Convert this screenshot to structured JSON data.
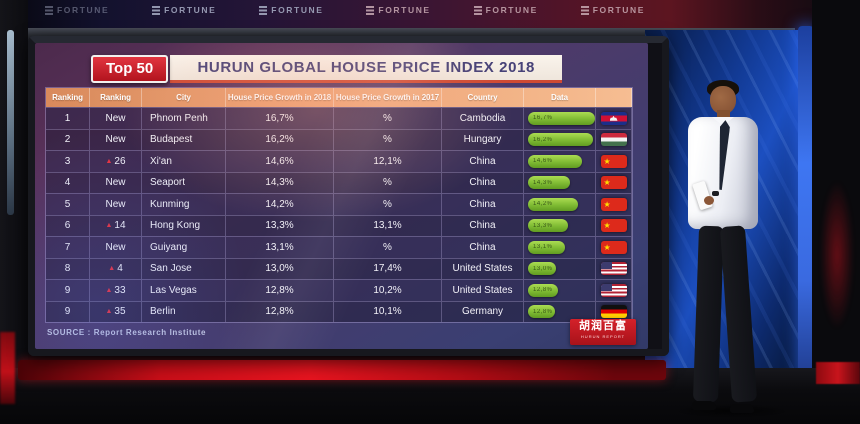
{
  "scene": {
    "banner": {
      "brand": "FORTUNE",
      "count": 6
    },
    "source": "SOURCE : Report Research Institute",
    "logo": {
      "text": "胡润百富",
      "subtext": "HURUN REPORT"
    }
  },
  "board": {
    "badge": "Top 50",
    "title": "HURUN GLOBAL HOUSE PRICE INDEX 2018",
    "columns": [
      "Ranking",
      "Ranking",
      "City",
      "House Price Growth in 2018",
      "House Price Growth in 2017",
      "Country",
      "Data",
      ""
    ]
  },
  "palette": {
    "badge_red": "#c4161f",
    "header_orange": "#eca374",
    "bar_green": "#7fbb33",
    "screen_purple": "#4f3a68",
    "backdrop_blue": "#1c4fc0",
    "led_red": "#e8141f"
  },
  "chart_data": {
    "type": "table",
    "title": "HURUN GLOBAL HOUSE PRICE INDEX 2018",
    "badge": "Top 50",
    "columns": [
      "Ranking",
      "Ranking (change)",
      "City",
      "House Price Growth in 2018",
      "House Price Growth in 2017",
      "Country",
      "Data"
    ],
    "rows": [
      {
        "ranking": "1",
        "rank_change": "New",
        "moved_up": false,
        "city": "Phnom Penh",
        "growth_2018": "16,7%",
        "growth_2018_value": 16.7,
        "growth_2017": "%",
        "growth_2017_value": null,
        "country": "Cambodia",
        "flag": "kh",
        "bar_pct": 100
      },
      {
        "ranking": "2",
        "rank_change": "New",
        "moved_up": false,
        "city": "Budapest",
        "growth_2018": "16,2%",
        "growth_2018_value": 16.2,
        "growth_2017": "%",
        "growth_2017_value": null,
        "country": "Hungary",
        "flag": "hu",
        "bar_pct": 97
      },
      {
        "ranking": "3",
        "rank_change": "26",
        "moved_up": true,
        "city": "Xi'an",
        "growth_2018": "14,6%",
        "growth_2018_value": 14.6,
        "growth_2017": "12,1%",
        "growth_2017_value": 12.1,
        "country": "China",
        "flag": "cn",
        "bar_pct": 80
      },
      {
        "ranking": "4",
        "rank_change": "New",
        "moved_up": false,
        "city": "Seaport",
        "growth_2018": "14,3%",
        "growth_2018_value": 14.3,
        "growth_2017": "%",
        "growth_2017_value": null,
        "country": "China",
        "flag": "cn",
        "bar_pct": 62
      },
      {
        "ranking": "5",
        "rank_change": "New",
        "moved_up": false,
        "city": "Kunming",
        "growth_2018": "14,2%",
        "growth_2018_value": 14.2,
        "growth_2017": "%",
        "growth_2017_value": null,
        "country": "China",
        "flag": "cn",
        "bar_pct": 74
      },
      {
        "ranking": "6",
        "rank_change": "14",
        "moved_up": true,
        "city": "Hong Kong",
        "growth_2018": "13,3%",
        "growth_2018_value": 13.3,
        "growth_2017": "13,1%",
        "growth_2017_value": 13.1,
        "country": "China",
        "flag": "cn",
        "bar_pct": 59
      },
      {
        "ranking": "7",
        "rank_change": "New",
        "moved_up": false,
        "city": "Guiyang",
        "growth_2018": "13,1%",
        "growth_2018_value": 13.1,
        "growth_2017": "%",
        "growth_2017_value": null,
        "country": "China",
        "flag": "cn",
        "bar_pct": 55
      },
      {
        "ranking": "8",
        "rank_change": "4",
        "moved_up": true,
        "city": "San Jose",
        "growth_2018": "13,0%",
        "growth_2018_value": 13.0,
        "growth_2017": "17,4%",
        "growth_2017_value": 17.4,
        "country": "United States",
        "flag": "us",
        "bar_pct": 42
      },
      {
        "ranking": "9",
        "rank_change": "33",
        "moved_up": true,
        "city": "Las Vegas",
        "growth_2018": "12,8%",
        "growth_2018_value": 12.8,
        "growth_2017": "10,2%",
        "growth_2017_value": 10.2,
        "country": "United States",
        "flag": "us",
        "bar_pct": 45
      },
      {
        "ranking": "9",
        "rank_change": "35",
        "moved_up": true,
        "city": "Berlin",
        "growth_2018": "12,8%",
        "growth_2018_value": 12.8,
        "growth_2017": "10,1%",
        "growth_2017_value": 10.1,
        "country": "Germany",
        "flag": "de",
        "bar_pct": 40
      }
    ],
    "source": "SOURCE : Report Research Institute",
    "legend_position": "none",
    "grid": true
  }
}
